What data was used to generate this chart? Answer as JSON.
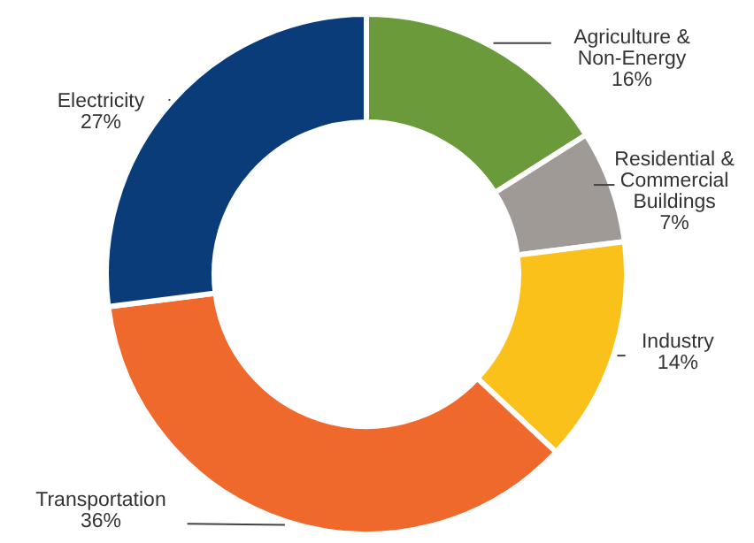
{
  "chart_data": {
    "type": "donut",
    "categories": [
      "Agriculture & Non-Energy",
      "Residential & Commercial Buildings",
      "Industry",
      "Transportation",
      "Electricity"
    ],
    "values": [
      16,
      7,
      14,
      36,
      27
    ],
    "value_labels": [
      "16%",
      "7%",
      "14%",
      "36%",
      "27%"
    ],
    "colors": [
      "#6a9a3a",
      "#a09a96",
      "#f9c11a",
      "#f0692c",
      "#0b3c7a"
    ]
  }
}
